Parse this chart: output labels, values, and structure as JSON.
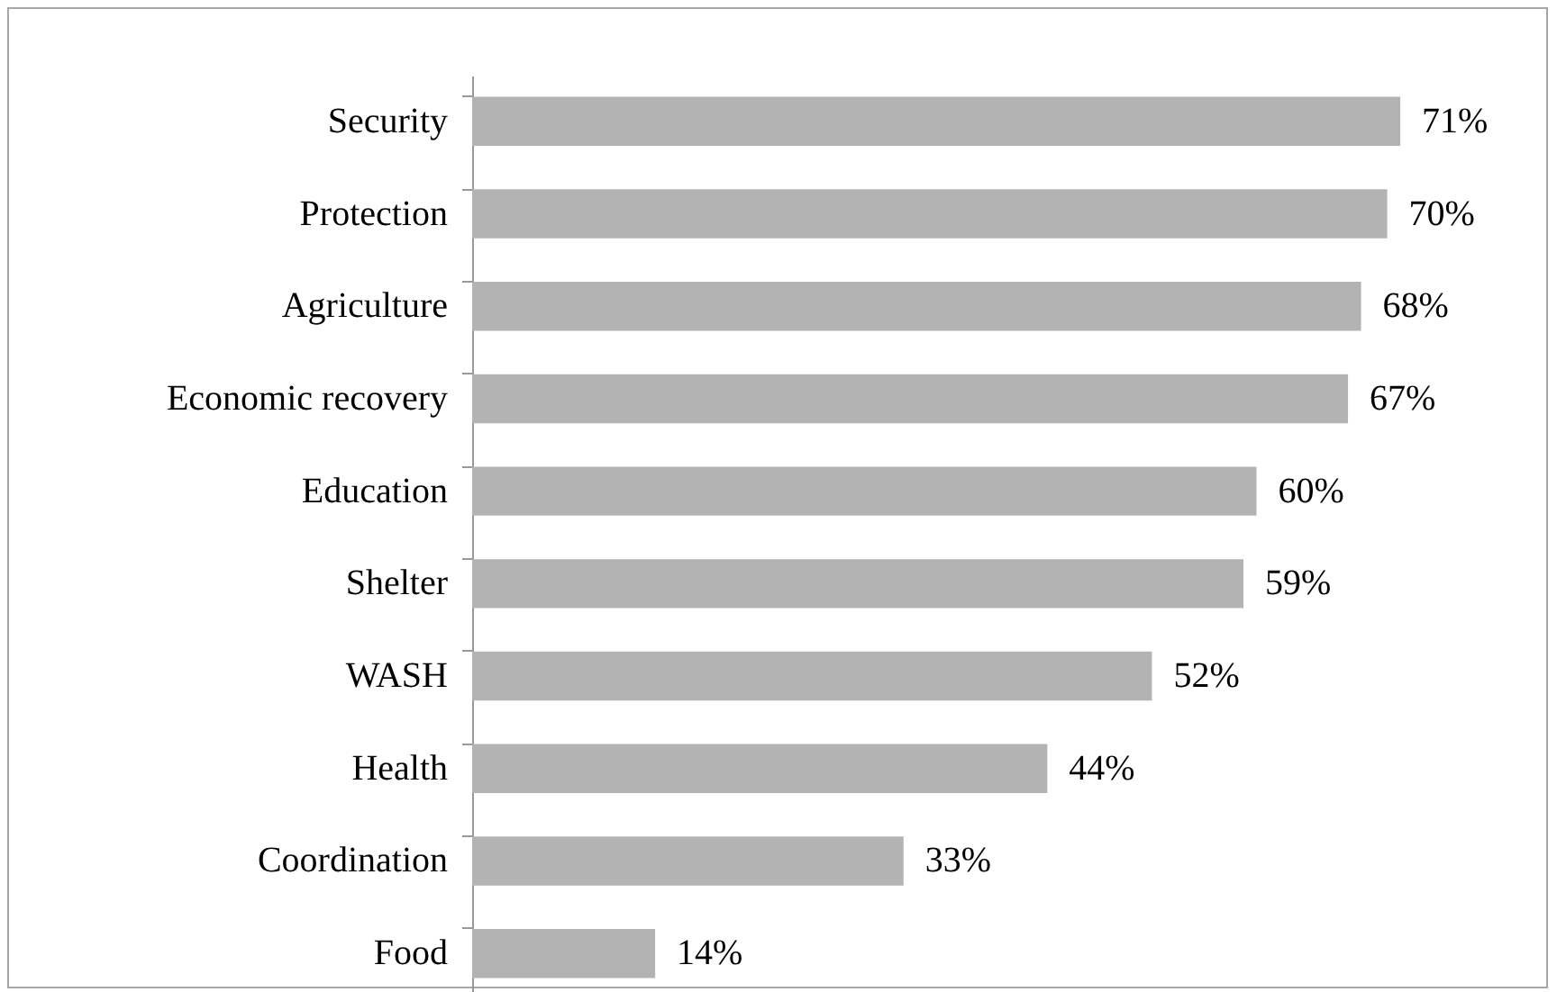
{
  "chart_data": {
    "type": "bar",
    "orientation": "horizontal",
    "categories": [
      "Security",
      "Protection",
      "Agriculture",
      "Economic recovery",
      "Education",
      "Shelter",
      "WASH",
      "Health",
      "Coordination",
      "Food"
    ],
    "values": [
      71,
      70,
      68,
      67,
      60,
      59,
      52,
      44,
      33,
      14
    ],
    "value_labels": [
      "71%",
      "70%",
      "68%",
      "67%",
      "60%",
      "59%",
      "52%",
      "44%",
      "33%",
      "14%"
    ],
    "color": "#b3b3b3"
  }
}
